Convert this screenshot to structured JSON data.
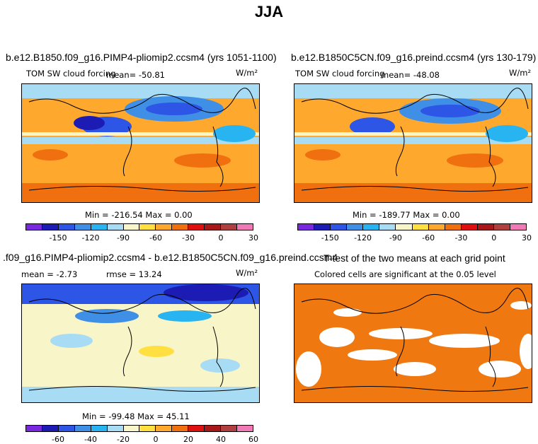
{
  "figure_title": "JJA",
  "panels": [
    {
      "id": "p1",
      "title": "b.e12.B1850.f09_g16.PIMP4-pliomip2.ccsm4 (yrs 1051-1100)",
      "variable": "TOM SW cloud forcing",
      "mean_text": "mean= -50.81",
      "units_text": "W/m²",
      "minmax_text": "Min = -216.54 Max =   0.00",
      "colorbar_ticks": [
        "-150",
        "-120",
        "-90",
        "-60",
        "-30",
        "0",
        "30"
      ]
    },
    {
      "id": "p2",
      "title": "b.e12.B1850C5CN.f09_g16.preind.ccsm4 (yrs 130-179)",
      "variable": "TOM SW cloud forcing",
      "mean_text": "mean= -48.08",
      "units_text": "W/m²",
      "minmax_text": "Min = -189.77 Max =   0.00",
      "colorbar_ticks": [
        "-150",
        "-120",
        "-90",
        "-60",
        "-30",
        "0",
        "30"
      ]
    },
    {
      "id": "p3",
      "title": ".f09_g16.PIMP4-pliomip2.ccsm4 - b.e12.B1850C5CN.f09_g16.preind.ccsm4",
      "mean_text": "mean =  -2.73",
      "rmse_text": "rmse =  13.24",
      "units_text": "W/m²",
      "minmax_text": "Min = -99.48 Max =  45.11",
      "colorbar_ticks": [
        "-60",
        "-40",
        "-20",
        "0",
        "20",
        "40",
        "60"
      ]
    },
    {
      "id": "p4",
      "title": "T-test of the two means at each grid point",
      "subtitle": "Colored cells are significant at the 0.05 level"
    }
  ],
  "colors": {
    "palette": [
      "#7a28e0",
      "#1c1cb4",
      "#2d55e6",
      "#3f8fe6",
      "#28b4f0",
      "#a8dcf5",
      "#f8f5c8",
      "#ffe040",
      "#ffa82e",
      "#f07010",
      "#e01010",
      "#a81818",
      "#b04040",
      "#f07ab8"
    ],
    "significant": "#f07810",
    "coast": "#000000"
  }
}
